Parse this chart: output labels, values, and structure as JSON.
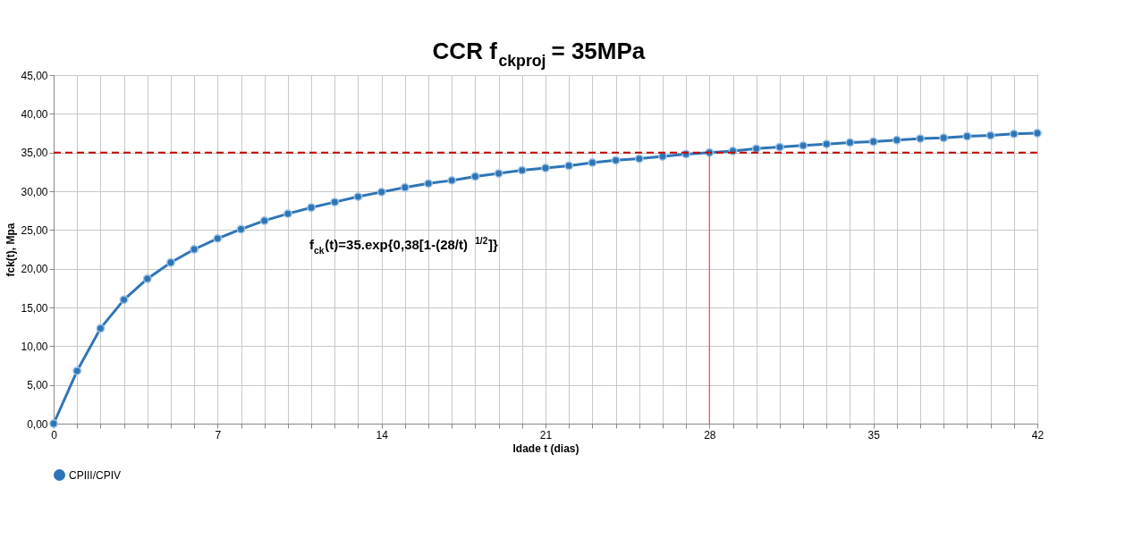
{
  "chart_data": {
    "type": "line",
    "title": "CCR f$_{ckproj}$ = 35MPa",
    "xlabel": "Idade t (dias)",
    "ylabel": "fck(t), Mpa",
    "x": [
      0,
      1,
      2,
      3,
      4,
      5,
      6,
      7,
      8,
      9,
      10,
      11,
      12,
      13,
      14,
      15,
      16,
      17,
      18,
      19,
      20,
      21,
      22,
      23,
      24,
      25,
      26,
      27,
      28,
      29,
      30,
      31,
      32,
      33,
      34,
      35,
      36,
      37,
      38,
      39,
      40,
      41,
      42
    ],
    "series": [
      {
        "name": "CPIII/CPIV",
        "color": "#2e75b6",
        "values": [
          0,
          6.8,
          12.3,
          16.0,
          18.7,
          20.8,
          22.5,
          23.9,
          25.1,
          26.2,
          27.1,
          27.9,
          28.6,
          29.3,
          29.9,
          30.5,
          31.0,
          31.4,
          31.9,
          32.3,
          32.7,
          33.0,
          33.3,
          33.7,
          34.0,
          34.2,
          34.5,
          34.8,
          35.0,
          35.2,
          35.5,
          35.7,
          35.9,
          36.1,
          36.3,
          36.4,
          36.6,
          36.8,
          36.9,
          37.1,
          37.2,
          37.4,
          37.5
        ]
      }
    ],
    "xlim": [
      0,
      42
    ],
    "xticks": [
      0,
      {
        "value": 1,
        "label": null
      },
      {
        "value": 2,
        "label": null
      },
      {
        "value": 3,
        "label": null
      },
      {
        "value": 4,
        "label": null
      },
      {
        "value": 5,
        "label": null
      },
      {
        "value": 6,
        "label": null
      },
      7,
      {
        "value": 8,
        "label": null
      },
      {
        "value": 9,
        "label": null
      },
      {
        "value": 10,
        "label": null
      },
      {
        "value": 11,
        "label": null
      },
      {
        "value": 12,
        "label": null
      },
      {
        "value": 13,
        "label": null
      },
      14,
      {
        "value": 15,
        "label": null
      },
      {
        "value": 16,
        "label": null
      },
      {
        "value": 17,
        "label": null
      },
      {
        "value": 18,
        "label": null
      },
      {
        "value": 19,
        "label": null
      },
      {
        "value": 20,
        "label": null
      },
      21,
      {
        "value": 22,
        "label": null
      },
      {
        "value": 23,
        "label": null
      },
      {
        "value": 24,
        "label": null
      },
      {
        "value": 25,
        "label": null
      },
      {
        "value": 26,
        "label": null
      },
      {
        "value": 27,
        "label": null
      },
      28,
      {
        "value": 29,
        "label": null
      },
      {
        "value": 30,
        "label": null
      },
      {
        "value": 31,
        "label": null
      },
      {
        "value": 32,
        "label": null
      },
      {
        "value": 33,
        "label": null
      },
      {
        "value": 34,
        "label": null
      },
      35,
      {
        "value": 36,
        "label": null
      },
      {
        "value": 37,
        "label": null
      },
      {
        "value": 38,
        "label": null
      },
      {
        "value": 39,
        "label": null
      },
      {
        "value": 40,
        "label": null
      },
      {
        "value": 41,
        "label": null
      },
      42
    ],
    "ylim": [
      0,
      45
    ],
    "yticks": [
      {
        "value": 0,
        "label": "0,00"
      },
      {
        "value": 5,
        "label": "5,00"
      },
      {
        "value": 10,
        "label": "10,00"
      },
      {
        "value": 15,
        "label": "15,00"
      },
      {
        "value": 20,
        "label": "20,00"
      },
      {
        "value": 25,
        "label": "25,00"
      },
      {
        "value": 30,
        "label": "30,00"
      },
      {
        "value": 35,
        "label": "35,00"
      },
      {
        "value": 40,
        "label": "40,00"
      },
      {
        "value": 45,
        "label": "45,00"
      }
    ],
    "ref_lines": [
      {
        "axis": "y",
        "value": 35,
        "color": "#c00000",
        "line_style": "dashed"
      },
      {
        "axis": "x",
        "value": 28,
        "color": "#e05050",
        "line_style": "solid"
      }
    ],
    "annotations": [
      "f$_{ck}$(t)=35.exp{0,38[1-(28/t)$^{1/2}$]}"
    ],
    "grid": true,
    "legend": "bottom",
    "marker": "circle",
    "line_style": "solid"
  }
}
